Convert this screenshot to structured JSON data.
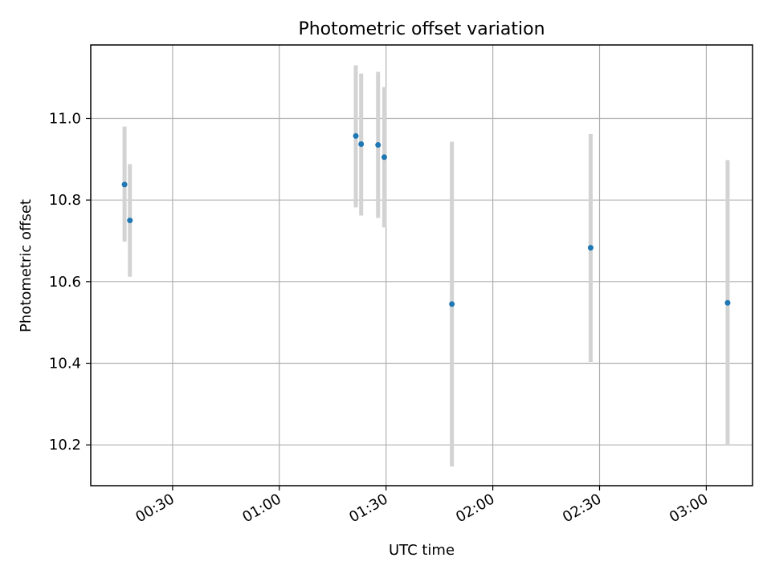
{
  "chart_data": {
    "type": "scatter",
    "title": "Photometric offset variation",
    "xlabel": "UTC time",
    "ylabel": "Photometric offset",
    "grid": true,
    "xlim": [
      "00:07",
      "03:13"
    ],
    "ylim": [
      10.1,
      11.18
    ],
    "x_ticks": [
      "00:30",
      "01:00",
      "01:30",
      "02:00",
      "02:30",
      "03:00"
    ],
    "y_ticks": [
      10.2,
      10.4,
      10.6,
      10.8,
      11.0
    ],
    "colors": {
      "point": "#1f77b4",
      "errorbar": "#d3d3d3"
    },
    "points": [
      {
        "time": "00:16:30",
        "value": 10.838,
        "low": 10.698,
        "high": 10.98
      },
      {
        "time": "00:18:00",
        "value": 10.75,
        "low": 10.612,
        "high": 10.888
      },
      {
        "time": "01:21:30",
        "value": 10.957,
        "low": 10.782,
        "high": 11.13
      },
      {
        "time": "01:23:00",
        "value": 10.937,
        "low": 10.762,
        "high": 11.11
      },
      {
        "time": "01:27:45",
        "value": 10.935,
        "low": 10.756,
        "high": 11.114
      },
      {
        "time": "01:29:30",
        "value": 10.905,
        "low": 10.733,
        "high": 11.077
      },
      {
        "time": "01:48:30",
        "value": 10.545,
        "low": 10.147,
        "high": 10.943
      },
      {
        "time": "02:27:30",
        "value": 10.683,
        "low": 10.403,
        "high": 10.962
      },
      {
        "time": "03:06:00",
        "value": 10.548,
        "low": 10.198,
        "high": 10.898
      }
    ]
  }
}
